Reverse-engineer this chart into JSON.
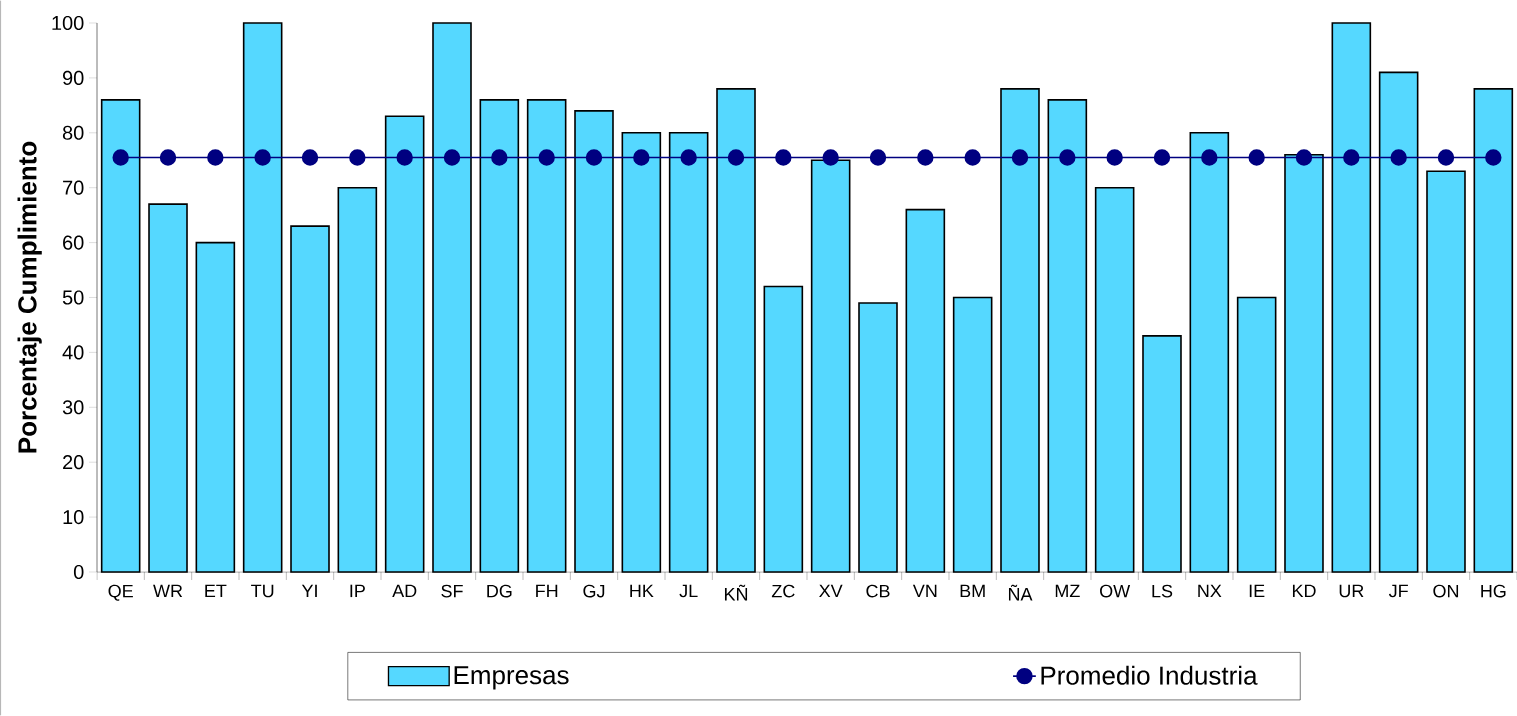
{
  "chart_data": {
    "type": "bar",
    "ylabel": "Porcentaje Cumplimiento",
    "categories": [
      "QE",
      "WR",
      "ET",
      "TU",
      "YI",
      "IP",
      "AD",
      "SF",
      "DG",
      "FH",
      "GJ",
      "HK",
      "JL",
      "KÑ",
      "ZC",
      "XV",
      "CB",
      "VN",
      "BM",
      "ÑA",
      "MZ",
      "OW",
      "LS",
      "NX",
      "IE",
      "KD",
      "UR",
      "JF",
      "ON",
      "HG"
    ],
    "series": [
      {
        "name": "Empresas",
        "color": "#55d8ff",
        "values": [
          86,
          67,
          60,
          100,
          63,
          70,
          83,
          100,
          86,
          86,
          84,
          80,
          80,
          88,
          52,
          75,
          49,
          66,
          50,
          88,
          86,
          70,
          43,
          80,
          50,
          76,
          100,
          91,
          73,
          88
        ]
      },
      {
        "name": "Promedio Industria",
        "type": "line",
        "color": "#000080",
        "marker": "circle",
        "values": [
          75.5,
          75.5,
          75.5,
          75.5,
          75.5,
          75.5,
          75.5,
          75.5,
          75.5,
          75.5,
          75.5,
          75.5,
          75.5,
          75.5,
          75.5,
          75.5,
          75.5,
          75.5,
          75.5,
          75.5,
          75.5,
          75.5,
          75.5,
          75.5,
          75.5,
          75.5,
          75.5,
          75.5,
          75.5,
          75.5
        ]
      }
    ],
    "ylim": [
      0,
      100
    ],
    "yticks": [
      0,
      10,
      20,
      30,
      40,
      50,
      60,
      70,
      80,
      90,
      100
    ],
    "legend": "bottom",
    "grid": false
  }
}
